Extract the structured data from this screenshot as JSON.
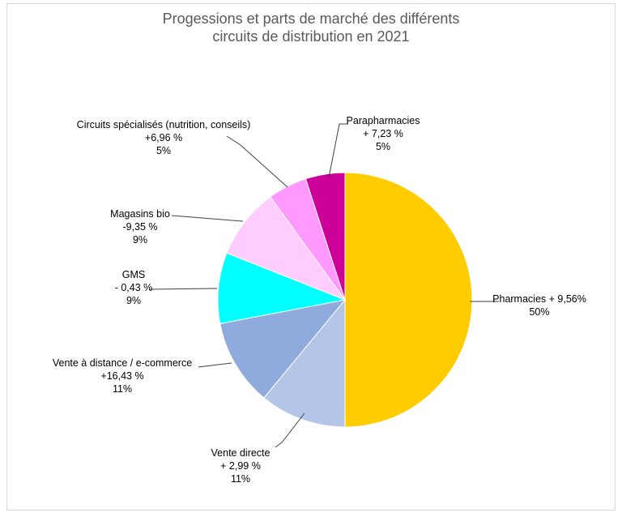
{
  "chart_data": {
    "type": "pie",
    "title_line1": "Progessions et parts de marché des différents",
    "title_line2": "circuits de distribution en 2021",
    "slices": [
      {
        "name": "Pharmacies",
        "growth": "+ 9,56%",
        "share_label": "50%",
        "share": 50,
        "color": "#ffcc00",
        "lines": [
          "Pharmacies + 9,56%",
          "50%"
        ]
      },
      {
        "name": "Vente directe",
        "growth": "+ 2,99 %",
        "share_label": "11%",
        "share": 11,
        "color": "#b4c6e7",
        "lines": [
          "Vente directe",
          "+ 2,99 %",
          "11%"
        ]
      },
      {
        "name": "Vente à distance / e-commerce",
        "growth": "+16,43 %",
        "share_label": "11%",
        "share": 11,
        "color": "#8faadc",
        "lines": [
          "Vente à distance / e-commerce",
          "+16,43 %",
          "11%"
        ]
      },
      {
        "name": "GMS",
        "growth": "- 0,43 %",
        "share_label": "9%",
        "share": 9,
        "color": "#00ffff",
        "lines": [
          "GMS",
          "- 0,43 %",
          "9%"
        ]
      },
      {
        "name": "Magasins bio",
        "growth": "-9,35 %",
        "share_label": "9%",
        "share": 9,
        "color": "#ffccff",
        "lines": [
          "Magasins bio",
          "-9,35 %",
          "9%"
        ]
      },
      {
        "name": "Circuits spécialisés (nutrition, conseils)",
        "growth": "+6,96 %",
        "share_label": "5%",
        "share": 5,
        "color": "#ff99ff",
        "lines": [
          "Circuits spécialisés (nutrition, conseils)",
          "+6,96 %",
          "5%"
        ]
      },
      {
        "name": "Parapharmacies",
        "growth": "+ 7,23 %",
        "share_label": "5%",
        "share": 5,
        "color": "#cc0099",
        "lines": [
          "Parapharmacies",
          "+ 7,23 %",
          "5%"
        ]
      }
    ]
  }
}
